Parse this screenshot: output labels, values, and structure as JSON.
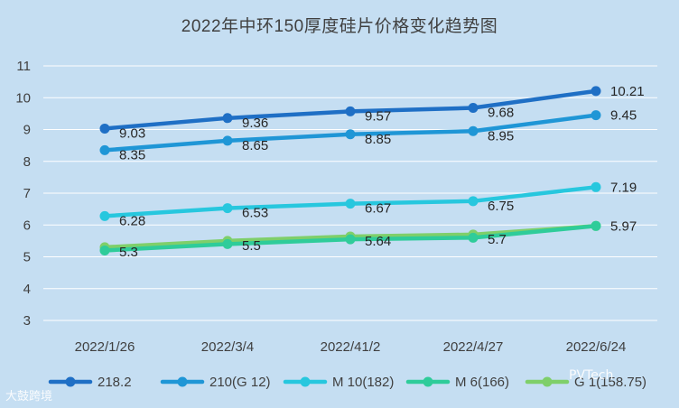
{
  "chart_data": {
    "type": "line",
    "title": "2022年中环150厚度硅片价格变化趋势图",
    "categories": [
      "2022/1/26",
      "2022/3/4",
      "2022/41/2",
      "2022/4/27",
      "2022/6/24"
    ],
    "ylim": [
      3,
      11
    ],
    "yticks": [
      3,
      4,
      5,
      6,
      7,
      8,
      9,
      10,
      11
    ],
    "grid": true,
    "legend_position": "bottom",
    "series": [
      {
        "name": "218.2",
        "color": "#1f6fc5",
        "values": [
          9.03,
          9.36,
          9.57,
          9.68,
          10.21
        ],
        "labels": [
          "9.03",
          "9.36",
          "9.57",
          "9.68",
          "10.21"
        ]
      },
      {
        "name": "210(G 12)",
        "color": "#1f96d6",
        "values": [
          8.35,
          8.65,
          8.85,
          8.95,
          9.45
        ],
        "labels": [
          "8.35",
          "8.65",
          "8.85",
          "8.95",
          "9.45"
        ]
      },
      {
        "name": "M 10(182)",
        "color": "#27c7de",
        "values": [
          6.28,
          6.53,
          6.67,
          6.75,
          7.19
        ],
        "labels": [
          "6.28",
          "6.53",
          "6.67",
          "6.75",
          "7.19"
        ]
      },
      {
        "name": "M 6(166)",
        "color": "#2fcc9a",
        "values": [
          5.2,
          5.4,
          5.55,
          5.6,
          5.97
        ],
        "labels": [],
        "end_label": ""
      },
      {
        "name": "G 1(158.75)",
        "color": "#7fcf6a",
        "values": [
          5.3,
          5.5,
          5.64,
          5.7,
          5.97
        ],
        "labels": [
          "5.3",
          "5.5",
          "5.64",
          "5.7",
          "5.97"
        ]
      }
    ]
  },
  "watermarks": {
    "left": "大鼓跨境",
    "right": "PVTech"
  }
}
